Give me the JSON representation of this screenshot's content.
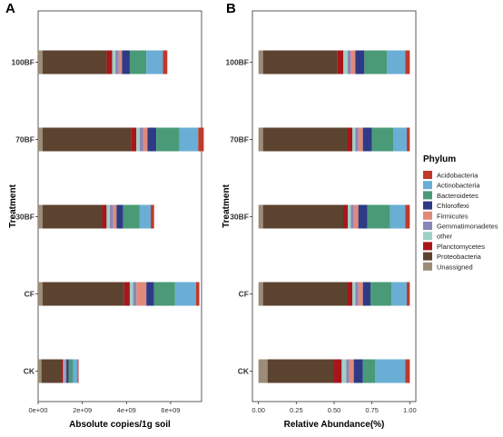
{
  "chart_data": [
    {
      "panel": "A",
      "type": "bar",
      "orientation": "horizontal",
      "stacked": true,
      "categories": [
        "100BF",
        "70BF",
        "30BF",
        "CF",
        "CK"
      ],
      "xlabel": "Absolute copies/1g soil",
      "ylabel": "Treatment",
      "xlim": [
        0,
        7400000000.0
      ],
      "xticks": [
        0,
        2000000000.0,
        4000000000.0,
        6000000000.0
      ],
      "xtick_labels": [
        "0e+00",
        "2e+09",
        "4e+09",
        "6e+09"
      ],
      "grid": false,
      "series": [
        {
          "name": "Unassigned",
          "values": [
            200000000.0,
            200000000.0,
            200000000.0,
            200000000.0,
            150000000.0
          ]
        },
        {
          "name": "Proteobacteria",
          "values": [
            2900000000.0,
            4000000000.0,
            2700000000.0,
            3700000000.0,
            900000000.0
          ]
        },
        {
          "name": "Planctomycetes",
          "values": [
            250000000.0,
            250000000.0,
            200000000.0,
            250000000.0,
            80000000.0
          ]
        },
        {
          "name": "other",
          "values": [
            150000000.0,
            150000000.0,
            150000000.0,
            150000000.0,
            50000000.0
          ]
        },
        {
          "name": "Gemmatimonadetes",
          "values": [
            150000000.0,
            150000000.0,
            150000000.0,
            150000000.0,
            50000000.0
          ]
        },
        {
          "name": "Firmicutes",
          "values": [
            150000000.0,
            200000000.0,
            150000000.0,
            450000000.0,
            50000000.0
          ]
        },
        {
          "name": "Chloroflexi",
          "values": [
            350000000.0,
            400000000.0,
            300000000.0,
            350000000.0,
            100000000.0
          ]
        },
        {
          "name": "Bacteroidetes",
          "values": [
            750000000.0,
            1050000000.0,
            750000000.0,
            950000000.0,
            200000000.0
          ]
        },
        {
          "name": "Actinobacteria",
          "values": [
            750000000.0,
            850000000.0,
            500000000.0,
            950000000.0,
            200000000.0
          ]
        },
        {
          "name": "Acidobacteria",
          "values": [
            200000000.0,
            250000000.0,
            150000000.0,
            150000000.0,
            50000000.0
          ]
        }
      ]
    },
    {
      "panel": "B",
      "type": "bar",
      "orientation": "horizontal",
      "stacked": true,
      "categories": [
        "100BF",
        "70BF",
        "30BF",
        "CF",
        "CK"
      ],
      "xlabel": "Relative Abundance(%)",
      "ylabel": "Treatment",
      "xlim": [
        -0.04,
        1.04
      ],
      "xticks": [
        0,
        0.25,
        0.5,
        0.75,
        1.0
      ],
      "xtick_labels": [
        "0.00",
        "0.25",
        "0.50",
        "0.75",
        "1.00"
      ],
      "grid": false,
      "legend": {
        "title": "Phylum",
        "placement": "right"
      },
      "series": [
        {
          "name": "Unassigned",
          "values": [
            0.03,
            0.03,
            0.03,
            0.03,
            0.06
          ]
        },
        {
          "name": "Proteobacteria",
          "values": [
            0.49,
            0.56,
            0.53,
            0.56,
            0.44
          ]
        },
        {
          "name": "Planctomycetes",
          "values": [
            0.04,
            0.03,
            0.03,
            0.03,
            0.05
          ]
        },
        {
          "name": "other",
          "values": [
            0.03,
            0.02,
            0.02,
            0.02,
            0.03
          ]
        },
        {
          "name": "Gemmatimonadetes",
          "values": [
            0.02,
            0.02,
            0.02,
            0.02,
            0.02
          ]
        },
        {
          "name": "Firmicutes",
          "values": [
            0.03,
            0.03,
            0.03,
            0.03,
            0.03
          ]
        },
        {
          "name": "Chloroflexi",
          "values": [
            0.06,
            0.06,
            0.06,
            0.05,
            0.06
          ]
        },
        {
          "name": "Bacteroidetes",
          "values": [
            0.15,
            0.14,
            0.15,
            0.14,
            0.08
          ]
        },
        {
          "name": "Actinobacteria",
          "values": [
            0.12,
            0.09,
            0.1,
            0.1,
            0.2
          ]
        },
        {
          "name": "Acidobacteria",
          "values": [
            0.03,
            0.02,
            0.03,
            0.02,
            0.03
          ]
        }
      ]
    }
  ],
  "legend": {
    "title": "Phylum",
    "entries": [
      "Acidobacteria",
      "Actinobacteria",
      "Bacteroidetes",
      "Chloroflexi",
      "Firmicutes",
      "Gemmatimonadetes",
      "other",
      "Planctomycetes",
      "Proteobacteria",
      "Unassigned"
    ]
  },
  "colors": {
    "Acidobacteria": "#c0392b",
    "Actinobacteria": "#6aaed6",
    "Bacteroidetes": "#4a9a78",
    "Chloroflexi": "#2e3a86",
    "Firmicutes": "#e08a7a",
    "Gemmatimonadetes": "#8a86b8",
    "other": "#9fd0c7",
    "Planctomycetes": "#a8161b",
    "Proteobacteria": "#5c4330",
    "Unassigned": "#9c8c78"
  }
}
